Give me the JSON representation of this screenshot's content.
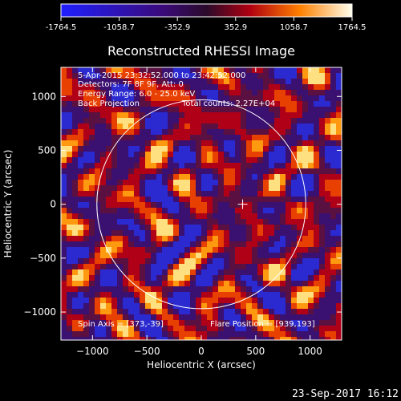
{
  "title": "Reconstructed RHESSI Image",
  "colorbar": {
    "ticks": [
      "-1764.5",
      "-1058.7",
      "-352.9",
      "352.9",
      "1058.7",
      "1764.5"
    ],
    "min": -1764.5,
    "max": 1764.5
  },
  "annotations": {
    "line1": "5-Apr-2015 23:32:52.000 to 23:42:52.000",
    "line2": "Detectors: 7F 8F 9F, Att: 0",
    "line3": "Energy Range: 6.0 - 25.0 keV",
    "line4_left": "Back Projection",
    "line4_right": "Total counts: 2.27E+04",
    "spin_axis": "Spin Axis = [373,-39]",
    "flare_position": "Flare Position = [939,193]"
  },
  "footer_date": "23-Sep-2017 16:12",
  "chart_data": {
    "type": "heatmap",
    "title": "Reconstructed RHESSI Image",
    "xlabel": "Heliocentric X (arcsec)",
    "ylabel": "Heliocentric Y (arcsec)",
    "xlim": [
      -1290,
      1290
    ],
    "ylim": [
      -1260,
      1270
    ],
    "xticks": [
      -1000,
      -500,
      0,
      500,
      1000
    ],
    "yticks": [
      1000,
      500,
      0,
      -500,
      -1000
    ],
    "xtick_labels": [
      "−1000",
      "−500",
      "0",
      "500",
      "1000"
    ],
    "ytick_labels": [
      "1000",
      "500",
      "0",
      "−500",
      "−1000"
    ],
    "value_range": [
      -1764.5,
      1764.5
    ],
    "colormap": "red-temperature",
    "solar_disk": {
      "center": [
        0,
        0
      ],
      "radius_arcsec": 960
    },
    "marker": {
      "x": 380,
      "y": 0,
      "symbol": "+"
    }
  }
}
